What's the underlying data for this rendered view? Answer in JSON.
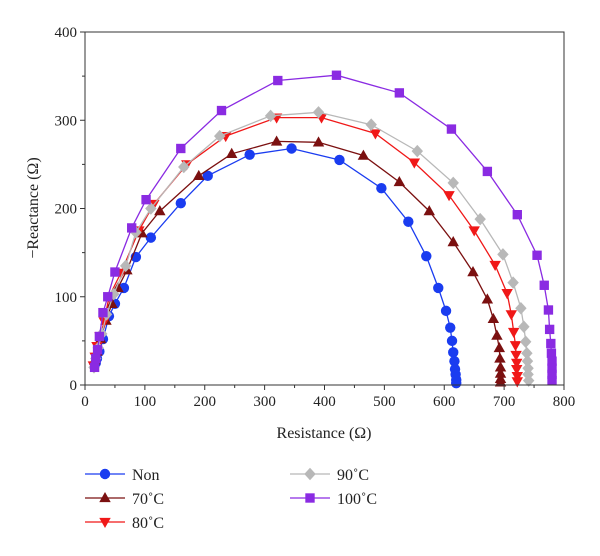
{
  "chart_data": {
    "type": "scatter",
    "xlabel": "Resistance (Ω)",
    "ylabel": "−Reactance (Ω)",
    "xlim": [
      0,
      800
    ],
    "ylim": [
      0,
      400
    ],
    "xticks": [
      0,
      100,
      200,
      300,
      400,
      500,
      600,
      700,
      800
    ],
    "yticks": [
      0,
      100,
      200,
      300,
      400
    ],
    "grid": false,
    "legend_position": "bottom",
    "series": [
      {
        "name": "Non",
        "color": "#1a3cf0",
        "marker": "circle",
        "points": [
          [
            18,
            25
          ],
          [
            20,
            30
          ],
          [
            24,
            38
          ],
          [
            30,
            52
          ],
          [
            40,
            78
          ],
          [
            50,
            92
          ],
          [
            65,
            110
          ],
          [
            85,
            145
          ],
          [
            110,
            167
          ],
          [
            160,
            206
          ],
          [
            205,
            237
          ],
          [
            275,
            261
          ],
          [
            345,
            268
          ],
          [
            425,
            255
          ],
          [
            495,
            223
          ],
          [
            540,
            185
          ],
          [
            570,
            146
          ],
          [
            590,
            110
          ],
          [
            603,
            84
          ],
          [
            610,
            65
          ],
          [
            613,
            50
          ],
          [
            615,
            37
          ],
          [
            617,
            27
          ],
          [
            618,
            18
          ],
          [
            619,
            12
          ],
          [
            620,
            6
          ],
          [
            620,
            2
          ]
        ]
      },
      {
        "name": "70˚C",
        "color": "#7b1010",
        "marker": "triangle-up",
        "points": [
          [
            16,
            28
          ],
          [
            20,
            38
          ],
          [
            26,
            52
          ],
          [
            35,
            73
          ],
          [
            45,
            92
          ],
          [
            55,
            110
          ],
          [
            70,
            130
          ],
          [
            95,
            172
          ],
          [
            125,
            197
          ],
          [
            190,
            237
          ],
          [
            245,
            262
          ],
          [
            320,
            276
          ],
          [
            390,
            275
          ],
          [
            465,
            260
          ],
          [
            525,
            230
          ],
          [
            575,
            197
          ],
          [
            615,
            162
          ],
          [
            648,
            128
          ],
          [
            672,
            97
          ],
          [
            682,
            75
          ],
          [
            688,
            56
          ],
          [
            692,
            42
          ],
          [
            693,
            30
          ],
          [
            694,
            20
          ],
          [
            694,
            13
          ],
          [
            694,
            7
          ],
          [
            694,
            3
          ]
        ]
      },
      {
        "name": "80˚C",
        "color": "#f01818",
        "marker": "triangle-down",
        "points": [
          [
            14,
            22
          ],
          [
            17,
            32
          ],
          [
            20,
            44
          ],
          [
            25,
            55
          ],
          [
            32,
            72
          ],
          [
            40,
            100
          ],
          [
            60,
            127
          ],
          [
            90,
            175
          ],
          [
            115,
            205
          ],
          [
            170,
            250
          ],
          [
            235,
            282
          ],
          [
            320,
            303
          ],
          [
            395,
            303
          ],
          [
            485,
            285
          ],
          [
            550,
            252
          ],
          [
            608,
            215
          ],
          [
            650,
            175
          ],
          [
            685,
            136
          ],
          [
            705,
            104
          ],
          [
            712,
            80
          ],
          [
            716,
            60
          ],
          [
            719,
            45
          ],
          [
            720,
            34
          ],
          [
            721,
            25
          ],
          [
            721,
            18
          ],
          [
            722,
            10
          ],
          [
            722,
            4
          ]
        ]
      },
      {
        "name": "90˚C",
        "color": "#b8b8b8",
        "marker": "diamond",
        "points": [
          [
            15,
            20
          ],
          [
            18,
            30
          ],
          [
            22,
            42
          ],
          [
            28,
            58
          ],
          [
            36,
            80
          ],
          [
            48,
            103
          ],
          [
            68,
            135
          ],
          [
            85,
            173
          ],
          [
            110,
            200
          ],
          [
            165,
            247
          ],
          [
            225,
            282
          ],
          [
            310,
            305
          ],
          [
            390,
            309
          ],
          [
            478,
            295
          ],
          [
            555,
            265
          ],
          [
            615,
            229
          ],
          [
            660,
            188
          ],
          [
            698,
            148
          ],
          [
            715,
            116
          ],
          [
            728,
            87
          ],
          [
            733,
            66
          ],
          [
            736,
            49
          ],
          [
            738,
            36
          ],
          [
            739,
            27
          ],
          [
            740,
            19
          ],
          [
            740,
            12
          ],
          [
            741,
            5
          ]
        ]
      },
      {
        "name": "100˚C",
        "color": "#8a2be2",
        "marker": "square",
        "points": [
          [
            16,
            20
          ],
          [
            18,
            30
          ],
          [
            21,
            40
          ],
          [
            24,
            55
          ],
          [
            30,
            82
          ],
          [
            38,
            100
          ],
          [
            50,
            128
          ],
          [
            78,
            178
          ],
          [
            102,
            210
          ],
          [
            160,
            268
          ],
          [
            228,
            311
          ],
          [
            322,
            345
          ],
          [
            420,
            351
          ],
          [
            525,
            331
          ],
          [
            612,
            290
          ],
          [
            672,
            242
          ],
          [
            722,
            193
          ],
          [
            755,
            147
          ],
          [
            767,
            113
          ],
          [
            774,
            85
          ],
          [
            776,
            63
          ],
          [
            778,
            47
          ],
          [
            779,
            36
          ],
          [
            780,
            27
          ],
          [
            780,
            19
          ],
          [
            780,
            12
          ],
          [
            780,
            5
          ]
        ]
      }
    ]
  }
}
